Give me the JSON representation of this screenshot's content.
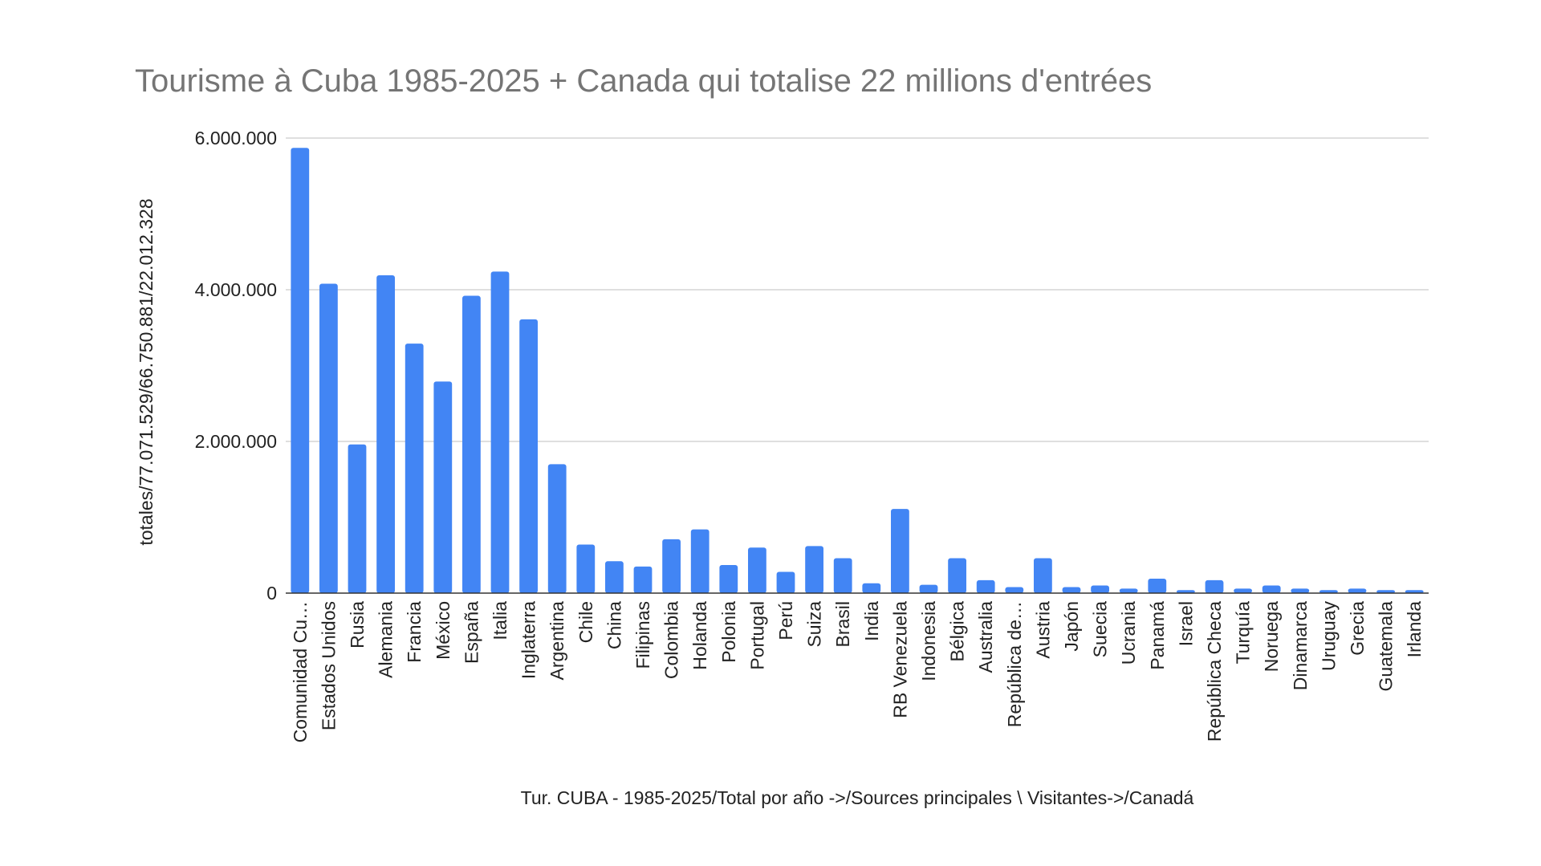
{
  "chart_data": {
    "type": "bar",
    "title": "Tourisme à Cuba 1985-2025  +  Canada qui totalise 22 millions d'entrées",
    "xlabel": "Tur. CUBA -  1985-2025/Total por año ->/Sources principales \\ Visitantes->/Canadá",
    "ylabel": "totales/77.071.529/66.750.881/22.012.328",
    "ylim": [
      0,
      6000000
    ],
    "yticks": [
      0,
      2000000,
      4000000,
      6000000
    ],
    "ytick_labels": [
      "0",
      "2.000.000",
      "4.000.000",
      "6.000.000"
    ],
    "grid": true,
    "legend": "none",
    "bar_color": "#4285f4",
    "categories": [
      "Comunidad Cu…",
      "Estados Unidos",
      "Rusia",
      "Alemania",
      "Francia",
      "México",
      "España",
      "Italia",
      "Inglaterra",
      "Argentina",
      "Chile",
      "China",
      "Filipinas",
      "Colombia",
      "Holanda",
      "Polonia",
      "Portugal",
      "Perú",
      "Suiza",
      "Brasil",
      "India",
      "RB Venezuela",
      "Indonesia",
      "Bélgica",
      "Australia",
      "República de…",
      "Austria",
      "Japón",
      "Suecia",
      "Ucrania",
      "Panamá",
      "Israel",
      "República Checa",
      "Turquía",
      "Noruega",
      "Dinamarca",
      "Uruguay",
      "Grecia",
      "Guatemala",
      "Irlanda"
    ],
    "values": [
      5870000,
      4080000,
      1960000,
      4190000,
      3290000,
      2790000,
      3920000,
      4240000,
      3610000,
      1700000,
      640000,
      420000,
      350000,
      710000,
      840000,
      370000,
      600000,
      280000,
      620000,
      460000,
      130000,
      1110000,
      110000,
      460000,
      170000,
      80000,
      460000,
      80000,
      100000,
      60000,
      190000,
      40000,
      170000,
      60000,
      100000,
      60000,
      40000,
      60000,
      40000,
      40000
    ]
  }
}
